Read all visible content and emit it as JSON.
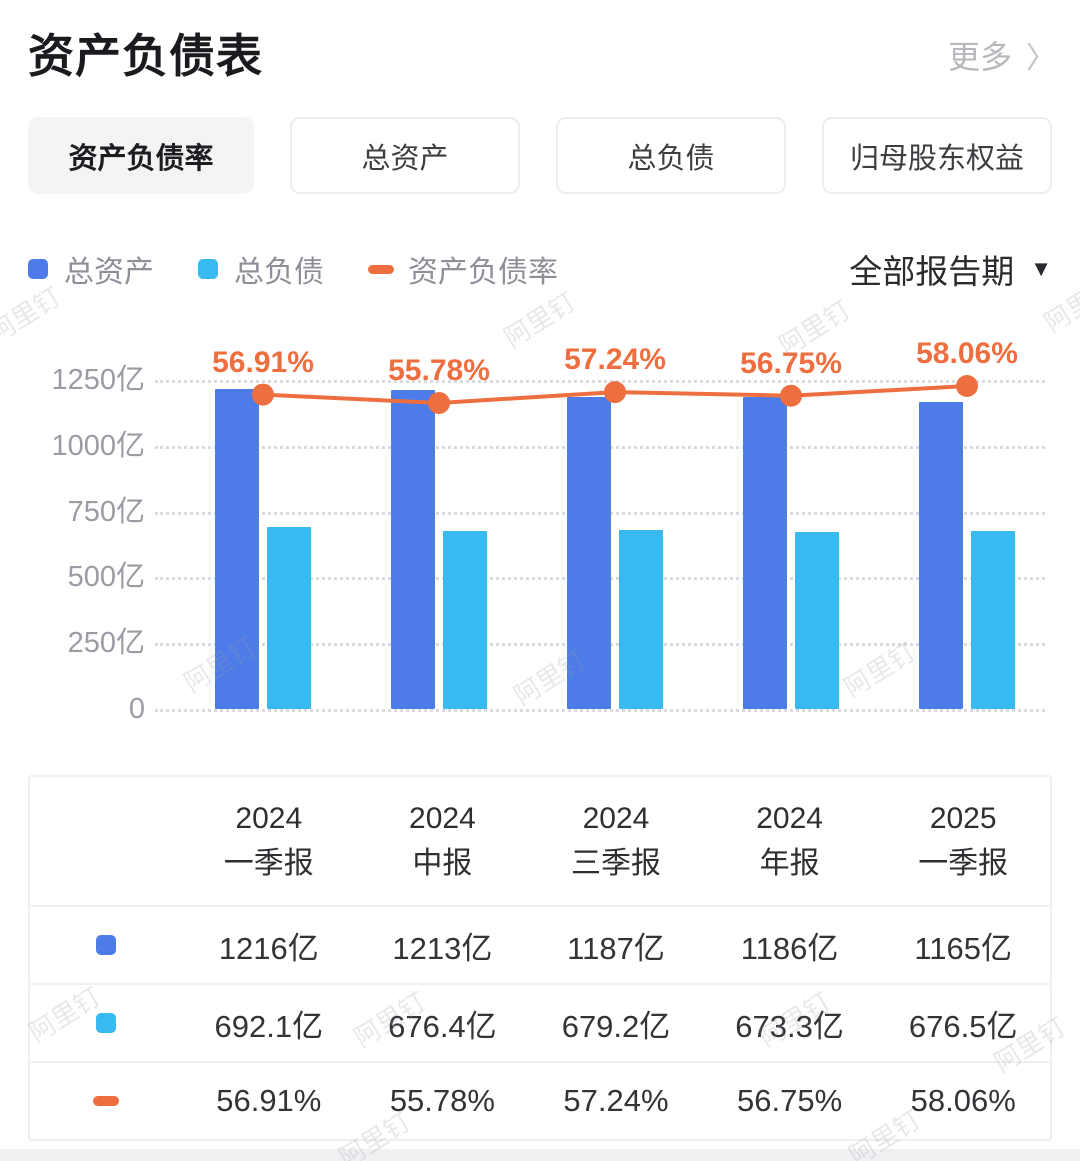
{
  "header": {
    "title": "资产负债表",
    "more_label": "更多",
    "more_chevron": "〉"
  },
  "tabs": [
    {
      "label": "资产负债率",
      "selected": true
    },
    {
      "label": "总资产",
      "selected": false
    },
    {
      "label": "总负债",
      "selected": false
    },
    {
      "label": "归母股东权益",
      "selected": false
    }
  ],
  "legend": {
    "items": [
      {
        "label": "总资产",
        "color": "#4d7ce8",
        "marker": "square"
      },
      {
        "label": "总负债",
        "color": "#38b9ef",
        "marker": "square"
      },
      {
        "label": "资产负债率",
        "color": "#ed6f3f",
        "marker": "dash"
      }
    ],
    "period_label": "全部报告期",
    "period_caret": "▼"
  },
  "chart_data": {
    "type": "bar",
    "categories": [
      "2024一季报",
      "2024中报",
      "2024三季报",
      "2024年报",
      "2025一季报"
    ],
    "series": [
      {
        "name": "总资产",
        "type": "bar",
        "color": "#4d7ce8",
        "unit": "亿",
        "values": [
          1216,
          1213,
          1187,
          1186,
          1165
        ]
      },
      {
        "name": "总负债",
        "type": "bar",
        "color": "#38b9ef",
        "unit": "亿",
        "values": [
          692.1,
          676.4,
          679.2,
          673.3,
          676.5
        ]
      },
      {
        "name": "资产负债率",
        "type": "line",
        "color": "#ed6f3f",
        "unit": "%",
        "values": [
          56.91,
          55.78,
          57.24,
          56.75,
          58.06
        ],
        "labels": [
          "56.91%",
          "55.78%",
          "57.24%",
          "56.75%",
          "58.06%"
        ]
      }
    ],
    "y_axis": {
      "ticks": [
        "0",
        "250亿",
        "500亿",
        "750亿",
        "1000亿",
        "1250亿"
      ],
      "tick_values": [
        0,
        250,
        500,
        750,
        1000,
        1250
      ],
      "max": 1250
    },
    "grid": "dotted horizontal",
    "legend_position": "top-left"
  },
  "table": {
    "columns": [
      {
        "line1": "2024",
        "line2": "一季报"
      },
      {
        "line1": "2024",
        "line2": "中报"
      },
      {
        "line1": "2024",
        "line2": "三季报"
      },
      {
        "line1": "2024",
        "line2": "年报"
      },
      {
        "line1": "2025",
        "line2": "一季报"
      }
    ],
    "rows": [
      {
        "series": "总资产",
        "marker": "blue-square",
        "values": [
          "1216亿",
          "1213亿",
          "1187亿",
          "1186亿",
          "1165亿"
        ]
      },
      {
        "series": "总负债",
        "marker": "cyan-square",
        "values": [
          "692.1亿",
          "676.4亿",
          "679.2亿",
          "673.3亿",
          "676.5亿"
        ]
      },
      {
        "series": "资产负债率",
        "marker": "orange-dash",
        "values": [
          "56.91%",
          "55.78%",
          "57.24%",
          "56.75%",
          "58.06%"
        ]
      }
    ]
  },
  "watermark": {
    "text": "阿里钉"
  },
  "colors": {
    "total_assets": "#4d7ce8",
    "total_liabilities": "#38b9ef",
    "debt_ratio": "#ed6f3f",
    "axis_text": "#9b9ba3",
    "muted_text": "#8e8e99"
  }
}
